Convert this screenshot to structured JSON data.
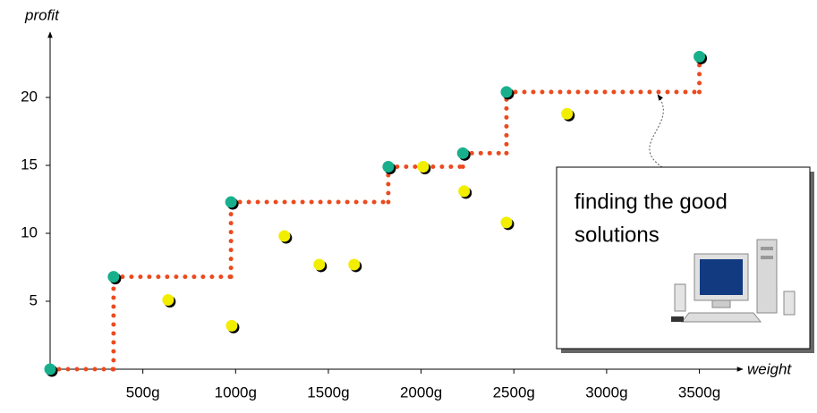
{
  "chart_data": {
    "type": "scatter",
    "x_label": "weight",
    "y_label": "profit",
    "xlim": [
      0,
      3700
    ],
    "ylim": [
      0,
      25
    ],
    "xticks": [
      {
        "value": 500,
        "label": "500g"
      },
      {
        "value": 1000,
        "label": "1000g"
      },
      {
        "value": 1500,
        "label": "1500g"
      },
      {
        "value": 2000,
        "label": "2000g"
      },
      {
        "value": 2500,
        "label": "2500g"
      },
      {
        "value": 3000,
        "label": "3000g"
      },
      {
        "value": 3500,
        "label": "3500g"
      }
    ],
    "yticks": [
      5,
      10,
      15,
      20
    ],
    "step_color": "#ec4a1e",
    "series": [
      {
        "color": "#18b08c",
        "x": [
          0,
          342,
          975,
          1823,
          2225,
          2460,
          3500
        ],
        "values": [
          0,
          6.8,
          12.3,
          14.9,
          15.9,
          20.4,
          23
        ]
      },
      {
        "color": "#f2ee00",
        "x": [
          636,
          979,
          1263,
          1451,
          1639,
          2011,
          2232,
          2460,
          2787
        ],
        "values": [
          5.1,
          3.2,
          9.8,
          7.7,
          7.7,
          14.9,
          13.1,
          10.8,
          18.8
        ]
      }
    ],
    "annotation": {
      "lines": [
        "finding the good",
        "solutions"
      ]
    }
  }
}
